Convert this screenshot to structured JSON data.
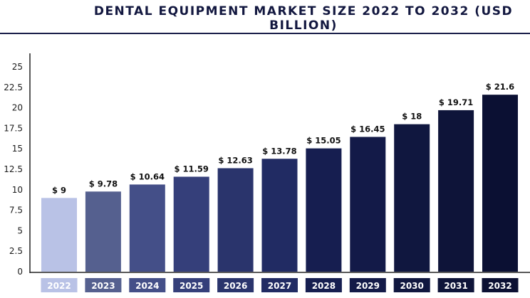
{
  "chart_data": {
    "type": "bar",
    "title": "DENTAL EQUIPMENT MARKET SIZE 2022 TO 2032 (USD BILLION)",
    "categories": [
      "2022",
      "2023",
      "2024",
      "2025",
      "2026",
      "2027",
      "2028",
      "2029",
      "2030",
      "2031",
      "2032"
    ],
    "values": [
      9,
      9.78,
      10.64,
      11.59,
      12.63,
      13.78,
      15.05,
      16.45,
      18,
      19.71,
      21.6
    ],
    "value_labels": [
      "$ 9",
      "$ 9.78",
      "$ 10.64",
      "$ 11.59",
      "$ 12.63",
      "$ 13.78",
      "$ 15.05",
      "$ 16.45",
      "$ 18",
      "$ 19.71",
      "$ 21.6"
    ],
    "yticks": [
      "0",
      "2.5",
      "5",
      "7.5",
      "10",
      "12.5",
      "15",
      "17.5",
      "20",
      "22.5",
      "25"
    ],
    "ylim": [
      0,
      25
    ],
    "xlabel": "",
    "ylabel": "",
    "grid": false,
    "bar_colors": [
      "#b9c2e6",
      "#55608f",
      "#444f88",
      "#353f7a",
      "#2a346c",
      "#212b63",
      "#161e50",
      "#131a48",
      "#10173f",
      "#0e1439",
      "#0b1033"
    ]
  }
}
